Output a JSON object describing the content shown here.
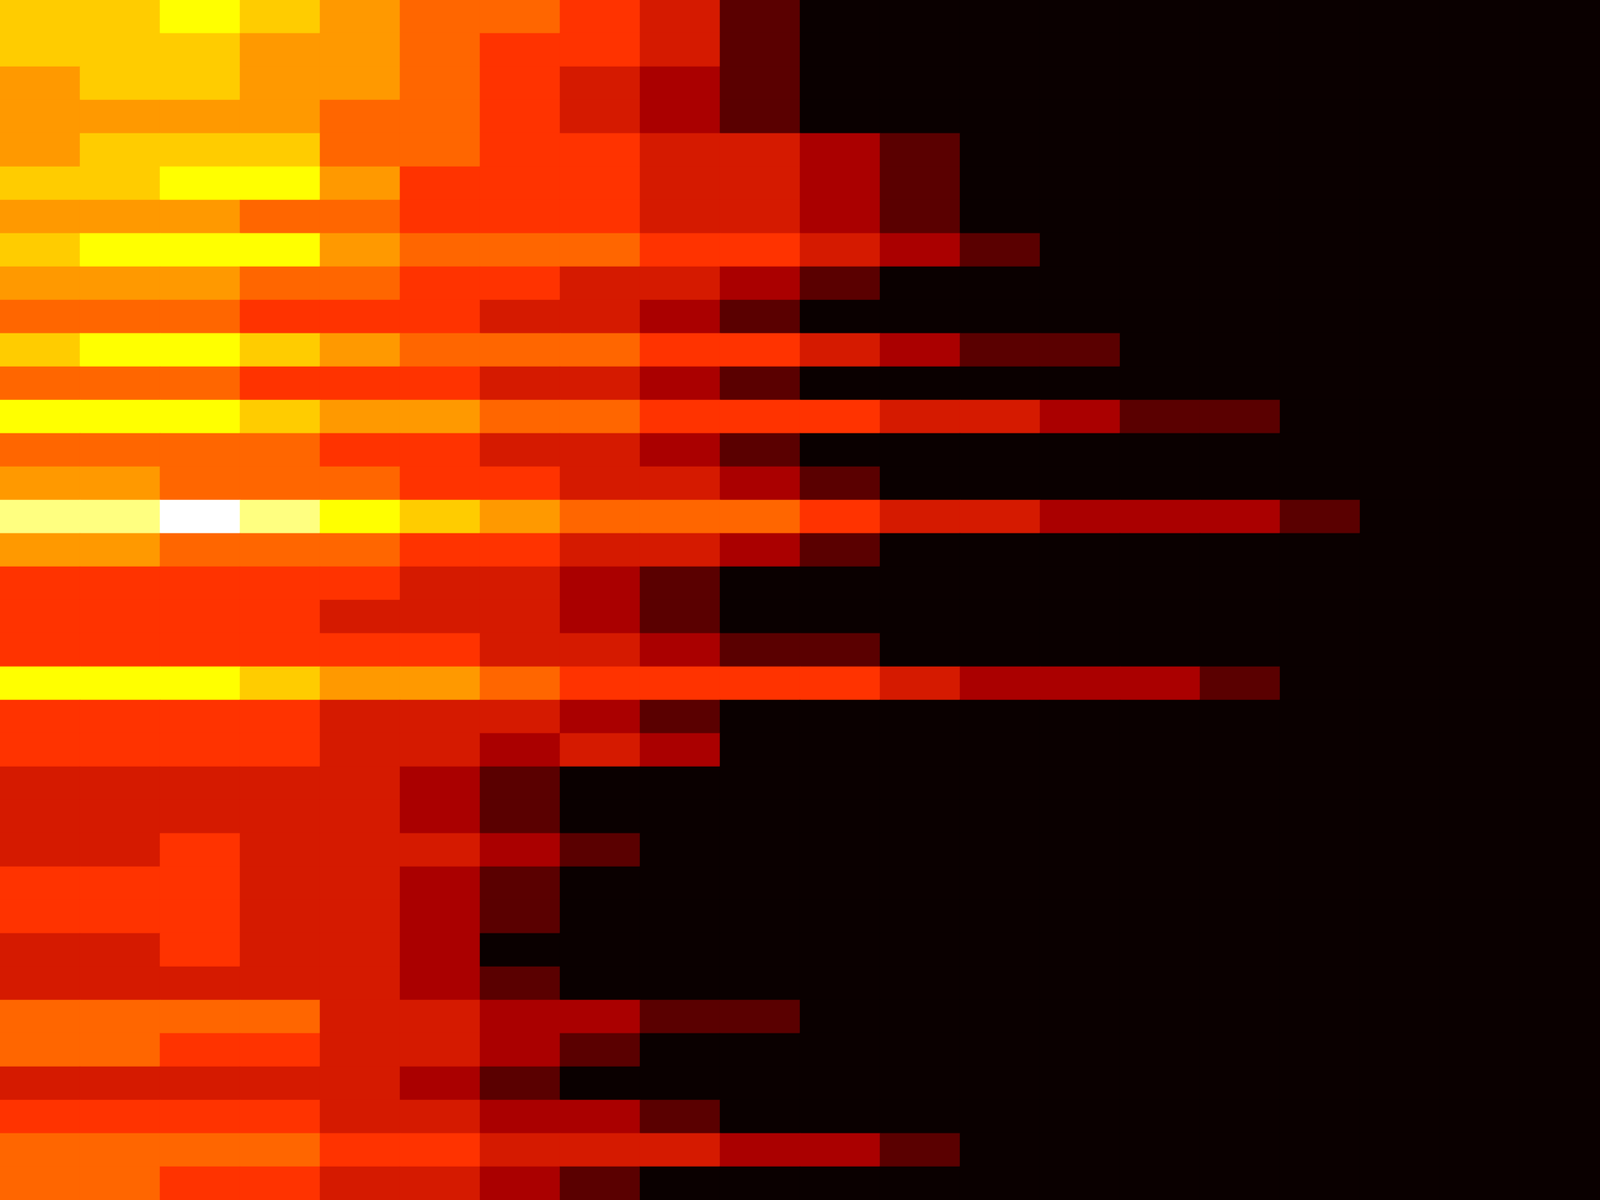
{
  "chart_data": {
    "type": "heatmap",
    "tick_labels": false,
    "zlim": [
      0,
      10
    ],
    "cells": [
      [
        7,
        7,
        8,
        7,
        6,
        5,
        5,
        4,
        3,
        1,
        0,
        0,
        0,
        0,
        0,
        0,
        0,
        0,
        0,
        0
      ],
      [
        7,
        7,
        7,
        6,
        6,
        5,
        4,
        4,
        3,
        1,
        0,
        0,
        0,
        0,
        0,
        0,
        0,
        0,
        0,
        0
      ],
      [
        6,
        7,
        7,
        6,
        6,
        5,
        4,
        3,
        2,
        1,
        0,
        0,
        0,
        0,
        0,
        0,
        0,
        0,
        0,
        0
      ],
      [
        6,
        6,
        6,
        6,
        5,
        5,
        4,
        3,
        2,
        1,
        0,
        0,
        0,
        0,
        0,
        0,
        0,
        0,
        0,
        0
      ],
      [
        6,
        7,
        7,
        7,
        5,
        5,
        4,
        4,
        3,
        3,
        2,
        1,
        0,
        0,
        0,
        0,
        0,
        0,
        0,
        0
      ],
      [
        7,
        7,
        8,
        8,
        6,
        4,
        4,
        4,
        3,
        3,
        2,
        1,
        0,
        0,
        0,
        0,
        0,
        0,
        0,
        0
      ],
      [
        6,
        6,
        6,
        5,
        5,
        4,
        4,
        4,
        3,
        3,
        2,
        1,
        0,
        0,
        0,
        0,
        0,
        0,
        0,
        0
      ],
      [
        7,
        8,
        8,
        8,
        6,
        5,
        5,
        5,
        4,
        4,
        3,
        2,
        1,
        0,
        0,
        0,
        0,
        0,
        0,
        0
      ],
      [
        6,
        6,
        6,
        5,
        5,
        4,
        4,
        3,
        3,
        2,
        1,
        0,
        0,
        0,
        0,
        0,
        0,
        0,
        0,
        0
      ],
      [
        5,
        5,
        5,
        4,
        4,
        4,
        3,
        3,
        2,
        1,
        0,
        0,
        0,
        0,
        0,
        0,
        0,
        0,
        0,
        0
      ],
      [
        7,
        8,
        8,
        7,
        6,
        5,
        5,
        5,
        4,
        4,
        3,
        2,
        1,
        1,
        0,
        0,
        0,
        0,
        0,
        0
      ],
      [
        5,
        5,
        5,
        4,
        4,
        4,
        3,
        3,
        2,
        1,
        0,
        0,
        0,
        0,
        0,
        0,
        0,
        0,
        0,
        0
      ],
      [
        8,
        8,
        8,
        7,
        6,
        6,
        5,
        5,
        4,
        4,
        4,
        3,
        3,
        2,
        1,
        1,
        0,
        0,
        0,
        0
      ],
      [
        5,
        5,
        5,
        5,
        4,
        4,
        3,
        3,
        2,
        1,
        0,
        0,
        0,
        0,
        0,
        0,
        0,
        0,
        0,
        0
      ],
      [
        6,
        6,
        5,
        5,
        5,
        4,
        4,
        3,
        3,
        2,
        1,
        0,
        0,
        0,
        0,
        0,
        0,
        0,
        0,
        0
      ],
      [
        9,
        9,
        10,
        9,
        8,
        7,
        6,
        5,
        5,
        5,
        4,
        3,
        3,
        2,
        2,
        2,
        1,
        0,
        0,
        0
      ],
      [
        6,
        6,
        5,
        5,
        5,
        4,
        4,
        3,
        3,
        2,
        1,
        0,
        0,
        0,
        0,
        0,
        0,
        0,
        0,
        0
      ],
      [
        4,
        4,
        4,
        4,
        4,
        3,
        3,
        2,
        1,
        0,
        0,
        0,
        0,
        0,
        0,
        0,
        0,
        0,
        0,
        0
      ],
      [
        4,
        4,
        4,
        4,
        3,
        3,
        3,
        2,
        1,
        0,
        0,
        0,
        0,
        0,
        0,
        0,
        0,
        0,
        0,
        0
      ],
      [
        4,
        4,
        4,
        4,
        4,
        4,
        3,
        3,
        2,
        1,
        1,
        0,
        0,
        0,
        0,
        0,
        0,
        0,
        0,
        0
      ],
      [
        8,
        8,
        8,
        7,
        6,
        6,
        5,
        4,
        4,
        4,
        4,
        3,
        2,
        2,
        2,
        1,
        0,
        0,
        0,
        0
      ],
      [
        4,
        4,
        4,
        4,
        3,
        3,
        3,
        2,
        1,
        0,
        0,
        0,
        0,
        0,
        0,
        0,
        0,
        0,
        0,
        0
      ],
      [
        4,
        4,
        4,
        4,
        3,
        3,
        2,
        3,
        2,
        0,
        0,
        0,
        0,
        0,
        0,
        0,
        0,
        0,
        0,
        0
      ],
      [
        3,
        3,
        3,
        3,
        3,
        2,
        1,
        0,
        0,
        0,
        0,
        0,
        0,
        0,
        0,
        0,
        0,
        0,
        0,
        0
      ],
      [
        3,
        3,
        3,
        3,
        3,
        2,
        1,
        0,
        0,
        0,
        0,
        0,
        0,
        0,
        0,
        0,
        0,
        0,
        0,
        0
      ],
      [
        3,
        3,
        4,
        3,
        3,
        3,
        2,
        1,
        0,
        0,
        0,
        0,
        0,
        0,
        0,
        0,
        0,
        0,
        0,
        0
      ],
      [
        4,
        4,
        4,
        3,
        3,
        2,
        1,
        0,
        0,
        0,
        0,
        0,
        0,
        0,
        0,
        0,
        0,
        0,
        0,
        0
      ],
      [
        4,
        4,
        4,
        3,
        3,
        2,
        1,
        0,
        0,
        0,
        0,
        0,
        0,
        0,
        0,
        0,
        0,
        0,
        0,
        0
      ],
      [
        3,
        3,
        4,
        3,
        3,
        2,
        0,
        0,
        0,
        0,
        0,
        0,
        0,
        0,
        0,
        0,
        0,
        0,
        0,
        0
      ],
      [
        3,
        3,
        3,
        3,
        3,
        2,
        1,
        0,
        0,
        0,
        0,
        0,
        0,
        0,
        0,
        0,
        0,
        0,
        0,
        0
      ],
      [
        5,
        5,
        5,
        5,
        3,
        3,
        2,
        2,
        1,
        1,
        0,
        0,
        0,
        0,
        0,
        0,
        0,
        0,
        0,
        0
      ],
      [
        5,
        5,
        4,
        4,
        3,
        3,
        2,
        1,
        0,
        0,
        0,
        0,
        0,
        0,
        0,
        0,
        0,
        0,
        0,
        0
      ],
      [
        3,
        3,
        3,
        3,
        3,
        2,
        1,
        0,
        0,
        0,
        0,
        0,
        0,
        0,
        0,
        0,
        0,
        0,
        0,
        0
      ],
      [
        4,
        4,
        4,
        4,
        3,
        3,
        2,
        2,
        1,
        0,
        0,
        0,
        0,
        0,
        0,
        0,
        0,
        0,
        0,
        0
      ],
      [
        5,
        5,
        5,
        5,
        4,
        4,
        3,
        3,
        3,
        2,
        2,
        1,
        0,
        0,
        0,
        0,
        0,
        0,
        0,
        0
      ],
      [
        5,
        5,
        4,
        4,
        3,
        3,
        2,
        1,
        0,
        0,
        0,
        0,
        0,
        0,
        0,
        0,
        0,
        0,
        0,
        0
      ]
    ]
  }
}
